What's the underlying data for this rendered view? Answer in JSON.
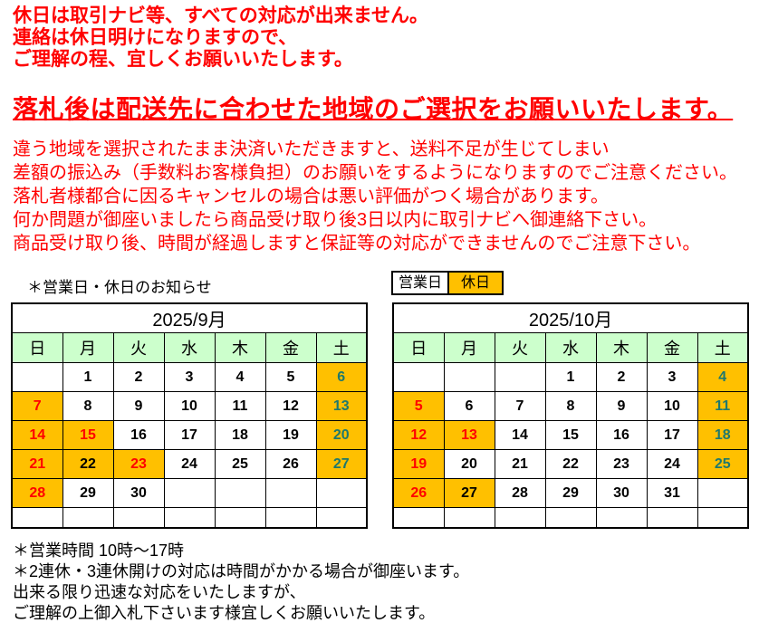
{
  "colors": {
    "warning_red": "#ff0000",
    "holiday_orange": "#ffc000",
    "day_header_green": "#ccffcc",
    "saturday_teal": "#1e786e",
    "text_black": "#000000"
  },
  "notice_top": {
    "lines": [
      "休日は取引ナビ等、すべての対応が出来ません。",
      "連絡は休日明けになりますので、",
      "ご理解の程、宜しくお願いいたします。"
    ]
  },
  "headline": {
    "text": "落札後は配送先に合わせた地域のご選択をお願いいたします。"
  },
  "notice_body": {
    "lines": [
      "違う地域を選択されたまま決済いただきますと、送料不足が生じてしまい",
      "差額の振込み（手数料お客様負担）のお願いをするようになりますのでご注意ください。",
      "落札者様都合に因るキャンセルの場合は悪い評価がつく場合があります。",
      "何か問題が御座いましたら商品受け取り後3日以内に取引ナビへ御連絡下さい。",
      "商品受け取り後、時間が経過しますと保証等の対応ができませんのでご注意下さい。"
    ]
  },
  "calendar_section": {
    "label": "＊営業日・休日のお知らせ",
    "legend_business": "営業日",
    "legend_holiday": "休日"
  },
  "calendars": [
    {
      "title": "2025/9月",
      "day_headers": [
        "日",
        "月",
        "火",
        "水",
        "木",
        "金",
        "土"
      ],
      "weeks": [
        [
          {
            "v": ""
          },
          {
            "v": "1",
            "fg": "black"
          },
          {
            "v": "2",
            "fg": "black"
          },
          {
            "v": "3",
            "fg": "black"
          },
          {
            "v": "4",
            "fg": "black"
          },
          {
            "v": "5",
            "fg": "black"
          },
          {
            "v": "6",
            "fg": "teal",
            "holiday": true
          }
        ],
        [
          {
            "v": "7",
            "fg": "red",
            "holiday": true
          },
          {
            "v": "8",
            "fg": "black"
          },
          {
            "v": "9",
            "fg": "black"
          },
          {
            "v": "10",
            "fg": "black"
          },
          {
            "v": "11",
            "fg": "black"
          },
          {
            "v": "12",
            "fg": "black"
          },
          {
            "v": "13",
            "fg": "teal",
            "holiday": true
          }
        ],
        [
          {
            "v": "14",
            "fg": "red",
            "holiday": true
          },
          {
            "v": "15",
            "fg": "red",
            "holiday": true
          },
          {
            "v": "16",
            "fg": "black"
          },
          {
            "v": "17",
            "fg": "black"
          },
          {
            "v": "18",
            "fg": "black"
          },
          {
            "v": "19",
            "fg": "black"
          },
          {
            "v": "20",
            "fg": "teal",
            "holiday": true
          }
        ],
        [
          {
            "v": "21",
            "fg": "red",
            "holiday": true
          },
          {
            "v": "22",
            "fg": "black",
            "holiday": true
          },
          {
            "v": "23",
            "fg": "red",
            "holiday": true
          },
          {
            "v": "24",
            "fg": "black"
          },
          {
            "v": "25",
            "fg": "black"
          },
          {
            "v": "26",
            "fg": "black"
          },
          {
            "v": "27",
            "fg": "teal",
            "holiday": true
          }
        ],
        [
          {
            "v": "28",
            "fg": "red",
            "holiday": true
          },
          {
            "v": "29",
            "fg": "black"
          },
          {
            "v": "30",
            "fg": "black"
          },
          {
            "v": ""
          },
          {
            "v": ""
          },
          {
            "v": ""
          },
          {
            "v": ""
          }
        ],
        [
          {
            "v": ""
          },
          {
            "v": ""
          },
          {
            "v": ""
          },
          {
            "v": ""
          },
          {
            "v": ""
          },
          {
            "v": ""
          },
          {
            "v": ""
          }
        ]
      ]
    },
    {
      "title": "2025/10月",
      "day_headers": [
        "日",
        "月",
        "火",
        "水",
        "木",
        "金",
        "土"
      ],
      "weeks": [
        [
          {
            "v": ""
          },
          {
            "v": ""
          },
          {
            "v": ""
          },
          {
            "v": "1",
            "fg": "black"
          },
          {
            "v": "2",
            "fg": "black"
          },
          {
            "v": "3",
            "fg": "black"
          },
          {
            "v": "4",
            "fg": "teal",
            "holiday": true
          }
        ],
        [
          {
            "v": "5",
            "fg": "red",
            "holiday": true
          },
          {
            "v": "6",
            "fg": "black"
          },
          {
            "v": "7",
            "fg": "black"
          },
          {
            "v": "8",
            "fg": "black"
          },
          {
            "v": "9",
            "fg": "black"
          },
          {
            "v": "10",
            "fg": "black"
          },
          {
            "v": "11",
            "fg": "teal",
            "holiday": true
          }
        ],
        [
          {
            "v": "12",
            "fg": "red",
            "holiday": true
          },
          {
            "v": "13",
            "fg": "red",
            "holiday": true
          },
          {
            "v": "14",
            "fg": "black"
          },
          {
            "v": "15",
            "fg": "black"
          },
          {
            "v": "16",
            "fg": "black"
          },
          {
            "v": "17",
            "fg": "black"
          },
          {
            "v": "18",
            "fg": "teal",
            "holiday": true
          }
        ],
        [
          {
            "v": "19",
            "fg": "red",
            "holiday": true
          },
          {
            "v": "20",
            "fg": "black"
          },
          {
            "v": "21",
            "fg": "black"
          },
          {
            "v": "22",
            "fg": "black"
          },
          {
            "v": "23",
            "fg": "black"
          },
          {
            "v": "24",
            "fg": "black"
          },
          {
            "v": "25",
            "fg": "teal",
            "holiday": true
          }
        ],
        [
          {
            "v": "26",
            "fg": "red",
            "holiday": true
          },
          {
            "v": "27",
            "fg": "black",
            "holiday": true
          },
          {
            "v": "28",
            "fg": "black"
          },
          {
            "v": "29",
            "fg": "black"
          },
          {
            "v": "30",
            "fg": "black"
          },
          {
            "v": "31",
            "fg": "black"
          },
          {
            "v": ""
          }
        ],
        [
          {
            "v": ""
          },
          {
            "v": ""
          },
          {
            "v": ""
          },
          {
            "v": ""
          },
          {
            "v": ""
          },
          {
            "v": ""
          },
          {
            "v": ""
          }
        ]
      ]
    }
  ],
  "notice_bottom": {
    "lines": [
      "＊営業時間 10時～17時",
      "＊2連休・3連休開けの対応は時間がかかる場合が御座います。",
      "出来る限り迅速な対応をいたしますが、",
      "ご理解の上御入札下さいます様宜しくお願いいたします。"
    ]
  }
}
